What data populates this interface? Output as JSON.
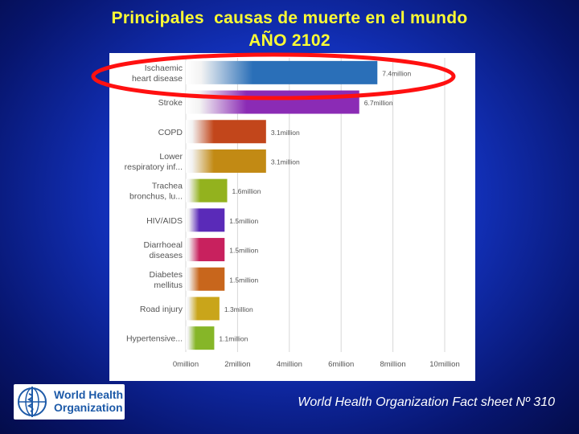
{
  "slide": {
    "title_line1": "Principales  causas de muerte en el mundo",
    "title_line2": "AÑO 2102",
    "source": "World Health Organization Fact sheet Nº 310",
    "logo_text_line1": "World Health",
    "logo_text_line2": "Organization"
  },
  "chart_data": {
    "type": "bar",
    "orientation": "horizontal",
    "categories": [
      [
        "Ischaemic",
        "heart disease"
      ],
      [
        "Stroke"
      ],
      [
        "COPD"
      ],
      [
        "Lower",
        "respiratory inf..."
      ],
      [
        "Trachea",
        "bronchus, lu..."
      ],
      [
        "HIV/AIDS"
      ],
      [
        "Diarrhoeal",
        "diseases"
      ],
      [
        "Diabetes",
        "mellitus"
      ],
      [
        "Road injury"
      ],
      [
        "Hypertensive..."
      ]
    ],
    "values": [
      7.4,
      6.7,
      3.1,
      3.1,
      1.6,
      1.5,
      1.5,
      1.5,
      1.3,
      1.1
    ],
    "value_labels": [
      "7.4million",
      "6.7million",
      "3.1million",
      "3.1million",
      "1.6million",
      "1.5million",
      "1.5million",
      "1.5million",
      "1.3million",
      "1.1million"
    ],
    "xlim": [
      0,
      10
    ],
    "xticks": [
      0,
      2,
      4,
      6,
      8,
      10
    ],
    "xtick_labels": [
      "0million",
      "2million",
      "4million",
      "6million",
      "8million",
      "10million"
    ],
    "colors": [
      "#2a6fb8",
      "#8b2bb5",
      "#c2461b",
      "#c28a14",
      "#93b21e",
      "#5a2ab8",
      "#c8215e",
      "#c8661c",
      "#c9a51a",
      "#86b628"
    ],
    "grid": "vertical",
    "highlighted_category_index": 0,
    "highlight_color": "#ff1010"
  }
}
